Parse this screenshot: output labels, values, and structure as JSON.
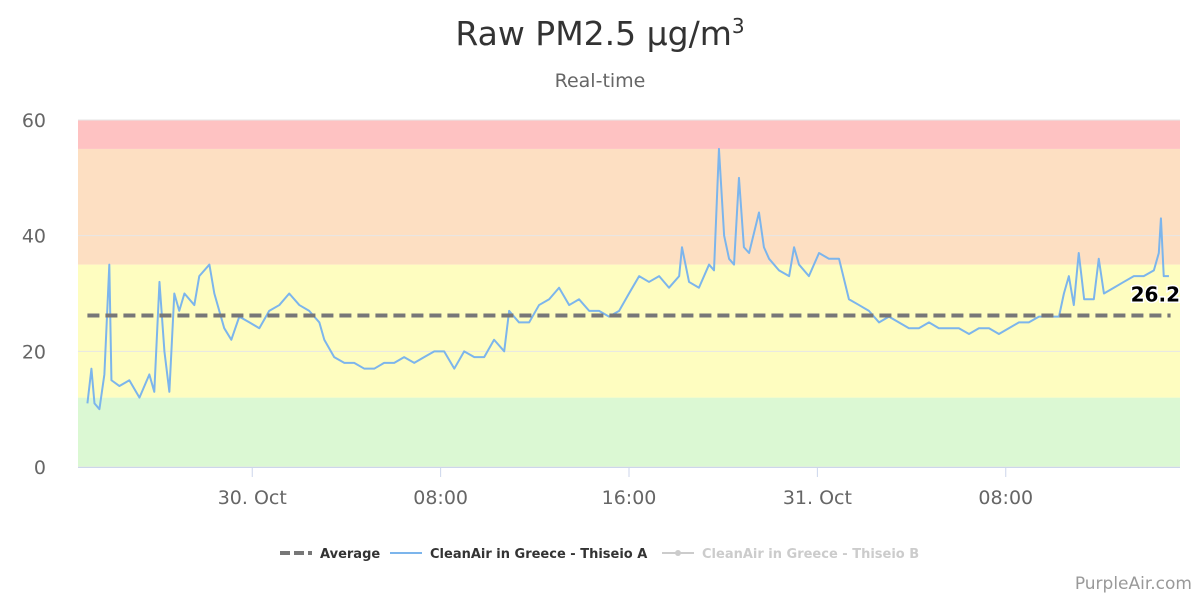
{
  "chart_data": {
    "type": "line",
    "title": "Raw PM2.5 μg/m",
    "title_sup": "3",
    "subtitle": "Real-time",
    "xlabel": "",
    "ylabel": "",
    "ylim": [
      0,
      60
    ],
    "yticks": [
      0,
      20,
      40,
      60
    ],
    "x_unit": "hours since 29 Oct 17:00",
    "xlim": [
      -0.4,
      46.4
    ],
    "xticks": [
      {
        "t": 7,
        "label": "30. Oct"
      },
      {
        "t": 15,
        "label": "08:00"
      },
      {
        "t": 23,
        "label": "16:00"
      },
      {
        "t": 31,
        "label": "31. Oct"
      },
      {
        "t": 39,
        "label": "08:00"
      }
    ],
    "bands": [
      {
        "from": 0,
        "to": 12,
        "color": "#dbf8d3"
      },
      {
        "from": 12,
        "to": 35,
        "color": "#fefdc0"
      },
      {
        "from": 35,
        "to": 55,
        "color": "#fddfc2"
      },
      {
        "from": 55,
        "to": 60,
        "color": "#fec2c2"
      }
    ],
    "series": [
      {
        "name": "Average",
        "color": "#777777",
        "dash": true,
        "value": 26.2,
        "label": "26.2",
        "t": [
          0,
          46
        ]
      },
      {
        "name": "CleanAir in Greece - Thiseio A",
        "color": "#7cb5ec",
        "t": [
          0,
          0.17,
          0.3,
          0.51,
          0.72,
          0.93,
          1.02,
          1.36,
          1.78,
          2.21,
          2.63,
          2.84,
          3.06,
          3.27,
          3.48,
          3.69,
          3.9,
          4.12,
          4.54,
          4.75,
          5.18,
          5.39,
          5.81,
          6.11,
          6.45,
          6.88,
          7.3,
          7.72,
          8.15,
          8.57,
          9.0,
          9.42,
          9.85,
          10.06,
          10.48,
          10.91,
          11.33,
          11.76,
          12.18,
          12.6,
          13.03,
          13.45,
          13.88,
          14.3,
          14.73,
          15.15,
          15.58,
          16.0,
          16.43,
          16.85,
          17.27,
          17.7,
          17.91,
          18.33,
          18.76,
          19.18,
          19.61,
          20.03,
          20.46,
          20.88,
          21.31,
          21.73,
          22.15,
          22.58,
          23.0,
          23.43,
          23.85,
          24.28,
          24.7,
          25.13,
          25.25,
          25.55,
          25.97,
          26.4,
          26.61,
          26.82,
          27.04,
          27.25,
          27.46,
          27.67,
          27.88,
          28.1,
          28.52,
          28.73,
          28.95,
          29.37,
          29.8,
          30.01,
          30.22,
          30.64,
          31.07,
          31.49,
          31.92,
          32.34,
          32.77,
          33.19,
          33.62,
          34.04,
          34.46,
          34.89,
          35.31,
          35.74,
          36.16,
          36.59,
          37.01,
          37.44,
          37.86,
          38.29,
          38.71,
          39.13,
          39.56,
          39.98,
          40.41,
          40.83,
          41.26,
          41.47,
          41.68,
          41.89,
          42.1,
          42.33,
          42.74,
          42.95,
          43.17,
          43.59,
          44.01,
          44.44,
          44.86,
          45.29,
          45.5,
          45.59,
          45.71,
          45.93
        ],
        "values": [
          11,
          17,
          11,
          10,
          16,
          35,
          15,
          14,
          15,
          12,
          16,
          13,
          32,
          20,
          13,
          30,
          27,
          30,
          28,
          33,
          35,
          30,
          24,
          22,
          26,
          25,
          24,
          27,
          28,
          30,
          28,
          27,
          25,
          22,
          19,
          18,
          18,
          17,
          17,
          18,
          18,
          19,
          18,
          19,
          20,
          20,
          17,
          20,
          19,
          19,
          22,
          20,
          27,
          25,
          25,
          28,
          29,
          31,
          28,
          29,
          27,
          27,
          26,
          27,
          30,
          33,
          32,
          33,
          31,
          33,
          38,
          32,
          31,
          35,
          34,
          55,
          40,
          36,
          35,
          50,
          38,
          37,
          44,
          38,
          36,
          34,
          33,
          38,
          35,
          33,
          37,
          36,
          36,
          29,
          28,
          27,
          25,
          26,
          25,
          24,
          24,
          25,
          24,
          24,
          24,
          23,
          24,
          24,
          23,
          24,
          25,
          25,
          26,
          26,
          26,
          30,
          33,
          28,
          37,
          29,
          29,
          36,
          30,
          31,
          32,
          33,
          33,
          34,
          37,
          43,
          33,
          33
        ]
      },
      {
        "name": "CleanAir in Greece - Thiseio B",
        "color": "#cccccc",
        "hidden": true
      }
    ]
  },
  "credit": "PurpleAir.com"
}
